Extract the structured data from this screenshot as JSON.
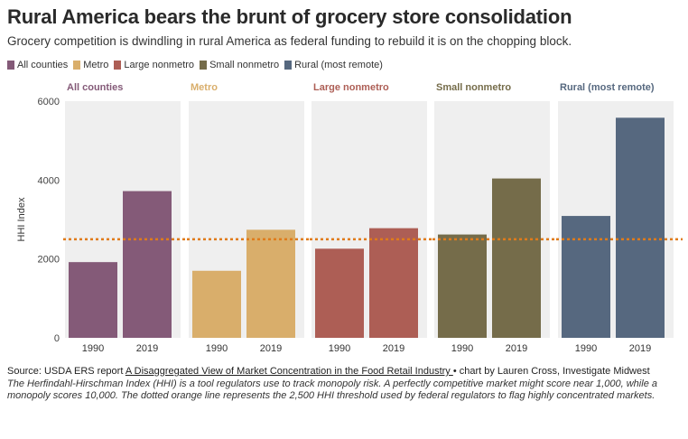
{
  "title": "Rural America bears the brunt of grocery store consolidation",
  "subtitle": "Grocery competition is dwindling in rural America as federal funding to rebuild it is on the chopping block.",
  "colors": {
    "all_counties": "#845a78",
    "metro": "#d9ae6b",
    "large_nonmetro": "#ad5e55",
    "small_nonmetro": "#756c4a",
    "rural": "#56687f",
    "threshold": "#e07b1a"
  },
  "legend": [
    {
      "label": "All counties",
      "key": "all_counties"
    },
    {
      "label": "Metro",
      "key": "metro"
    },
    {
      "label": "Large nonmetro",
      "key": "large_nonmetro"
    },
    {
      "label": "Small nonmetro",
      "key": "small_nonmetro"
    },
    {
      "label": "Rural (most remote)",
      "key": "rural"
    }
  ],
  "chart_data": {
    "type": "bar",
    "ylabel": "HHI Index",
    "ylim": [
      0,
      6000
    ],
    "yticks": [
      0,
      2000,
      4000,
      6000
    ],
    "ytick_labels": [
      "0",
      "2000",
      "4000",
      "6000"
    ],
    "threshold": 2500,
    "grid": false,
    "legend_placement": "top-left",
    "panels": [
      {
        "name": "All counties",
        "key": "all_counties",
        "categories": [
          "1990",
          "2019"
        ],
        "values": [
          1920,
          3720
        ]
      },
      {
        "name": "Metro",
        "key": "metro",
        "categories": [
          "1990",
          "2019"
        ],
        "values": [
          1700,
          2740
        ]
      },
      {
        "name": "Large nonmetro",
        "key": "large_nonmetro",
        "categories": [
          "1990",
          "2019"
        ],
        "values": [
          2260,
          2780
        ]
      },
      {
        "name": "Small nonmetro",
        "key": "small_nonmetro",
        "categories": [
          "1990",
          "2019"
        ],
        "values": [
          2620,
          4040
        ]
      },
      {
        "name": "Rural (most remote)",
        "key": "rural",
        "categories": [
          "1990",
          "2019"
        ],
        "values": [
          3090,
          5580
        ]
      }
    ]
  },
  "footer": {
    "source_prefix": "Source: USDA ERS report ",
    "source_link": "A Disaggregated View of Market Concentration in the Food Retail Industry ",
    "source_suffix": "• chart by Lauren Cross, Investigate Midwest",
    "note": "The Herfindahl-Hirschman Index (HHI) is a tool regulators use to track monopoly risk. A perfectly competitive market might score near 1,000, while a monopoly scores 10,000. The dotted orange line represents the 2,500 HHI threshold used by federal regulators to flag highly concentrated markets."
  }
}
